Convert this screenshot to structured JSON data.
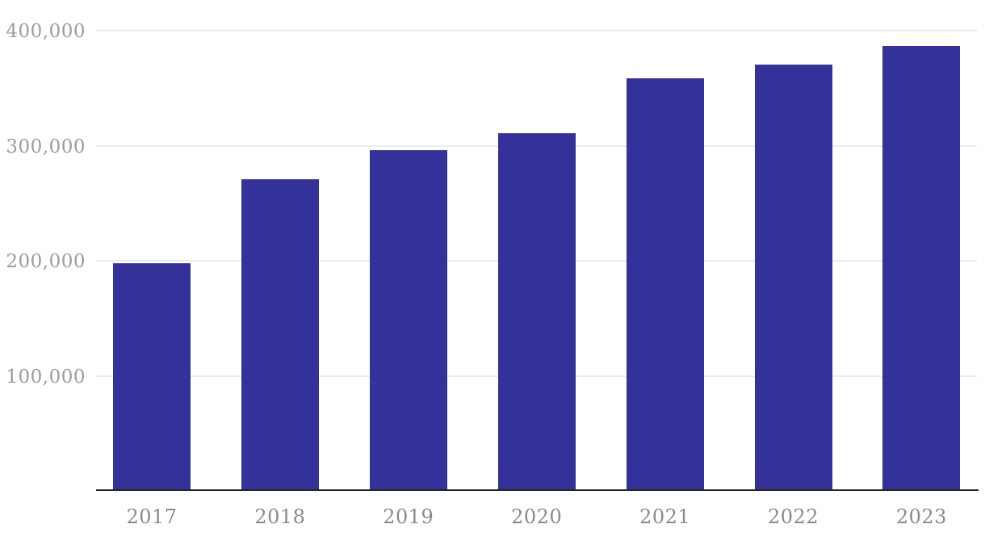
{
  "chart_data": {
    "type": "bar",
    "title": "",
    "xlabel": "",
    "ylabel": "",
    "categories": [
      "2017",
      "2018",
      "2019",
      "2020",
      "2021",
      "2022",
      "2023"
    ],
    "values": [
      198000,
      271000,
      296000,
      311000,
      359000,
      371000,
      387000
    ],
    "series_name": "",
    "ylim": [
      0,
      427000
    ],
    "yticks": [
      100000,
      200000,
      300000,
      400000
    ],
    "ytick_labels": [
      "100,000",
      "200,000",
      "300,000",
      "400,000"
    ],
    "grid": true,
    "legend_position": "none",
    "colors": {
      "bar": "#34319a",
      "background": "#ffffff",
      "gridline": "#ececec",
      "axis_line": "#262626",
      "ytick_text": "#9c9c9c",
      "xtick_text": "#8a8a8a"
    }
  }
}
